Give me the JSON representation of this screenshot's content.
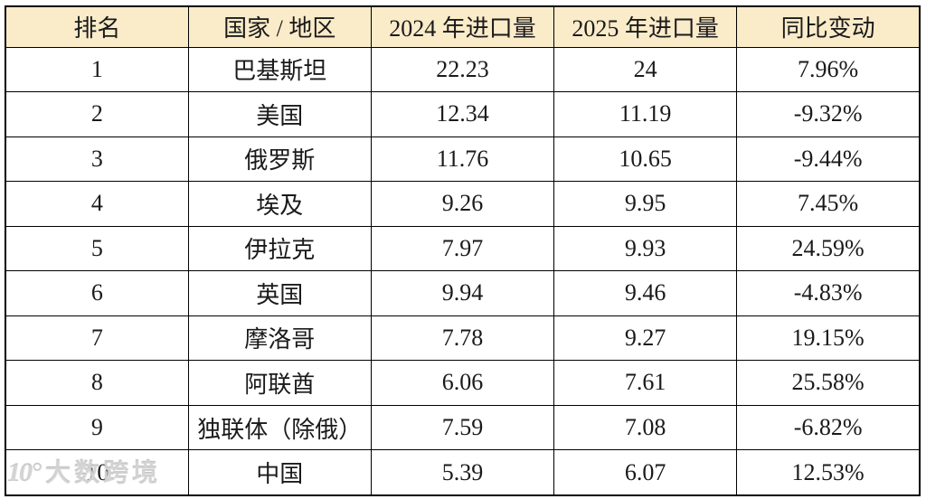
{
  "colors": {
    "page_background": "#FFFFFF",
    "header_background": "#FAEBC9",
    "border": "#000000",
    "text": "#1A1A1A",
    "watermark": "#BEBEBE"
  },
  "table": {
    "columns": [
      "排名",
      "国家 / 地区",
      "2024 年进口量",
      "2025 年进口量",
      "同比变动"
    ],
    "rows": [
      [
        "1",
        "巴基斯坦",
        "22.23",
        "24",
        "7.96%"
      ],
      [
        "2",
        "美国",
        "12.34",
        "11.19",
        "-9.32%"
      ],
      [
        "3",
        "俄罗斯",
        "11.76",
        "10.65",
        "-9.44%"
      ],
      [
        "4",
        "埃及",
        "9.26",
        "9.95",
        "7.45%"
      ],
      [
        "5",
        "伊拉克",
        "7.97",
        "9.93",
        "24.59%"
      ],
      [
        "6",
        "英国",
        "9.94",
        "9.46",
        "-4.83%"
      ],
      [
        "7",
        "摩洛哥",
        "7.78",
        "9.27",
        "19.15%"
      ],
      [
        "8",
        "阿联酋",
        "6.06",
        "7.61",
        "25.58%"
      ],
      [
        "9",
        "独联体（除俄）",
        "7.59",
        "7.08",
        "-6.82%"
      ],
      [
        "10",
        "中国",
        "5.39",
        "6.07",
        "12.53%"
      ]
    ]
  },
  "watermark": {
    "icon": "10°",
    "text": "大数跨境"
  },
  "chart_data": {
    "type": "table",
    "title": "",
    "columns": [
      "排名",
      "国家 / 地区",
      "2024 年进口量",
      "2025 年进口量",
      "同比变动"
    ],
    "rows": [
      {
        "rank": 1,
        "country": "巴基斯坦",
        "imports_2024": 22.23,
        "imports_2025": 24,
        "yoy_change_pct": 7.96
      },
      {
        "rank": 2,
        "country": "美国",
        "imports_2024": 12.34,
        "imports_2025": 11.19,
        "yoy_change_pct": -9.32
      },
      {
        "rank": 3,
        "country": "俄罗斯",
        "imports_2024": 11.76,
        "imports_2025": 10.65,
        "yoy_change_pct": -9.44
      },
      {
        "rank": 4,
        "country": "埃及",
        "imports_2024": 9.26,
        "imports_2025": 9.95,
        "yoy_change_pct": 7.45
      },
      {
        "rank": 5,
        "country": "伊拉克",
        "imports_2024": 7.97,
        "imports_2025": 9.93,
        "yoy_change_pct": 24.59
      },
      {
        "rank": 6,
        "country": "英国",
        "imports_2024": 9.94,
        "imports_2025": 9.46,
        "yoy_change_pct": -4.83
      },
      {
        "rank": 7,
        "country": "摩洛哥",
        "imports_2024": 7.78,
        "imports_2025": 9.27,
        "yoy_change_pct": 19.15
      },
      {
        "rank": 8,
        "country": "阿联酋",
        "imports_2024": 6.06,
        "imports_2025": 7.61,
        "yoy_change_pct": 25.58
      },
      {
        "rank": 9,
        "country": "独联体（除俄）",
        "imports_2024": 7.59,
        "imports_2025": 7.08,
        "yoy_change_pct": -6.82
      },
      {
        "rank": 10,
        "country": "中国",
        "imports_2024": 5.39,
        "imports_2025": 6.07,
        "yoy_change_pct": 12.53
      }
    ]
  }
}
